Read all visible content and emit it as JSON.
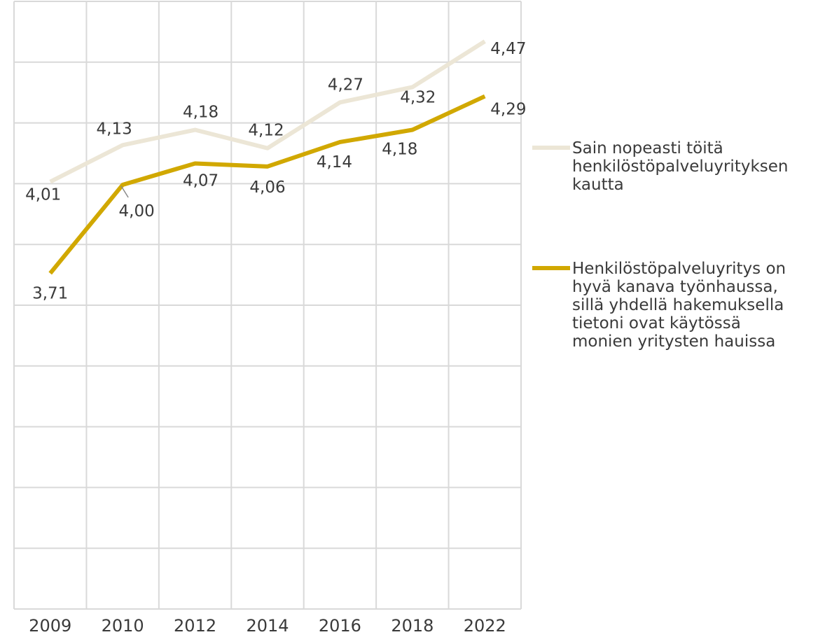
{
  "chart_data": {
    "type": "line",
    "categories": [
      "2009",
      "2010",
      "2012",
      "2014",
      "2016",
      "2018",
      "2022"
    ],
    "ylim": [
      3.0,
      4.5
    ],
    "grid": true,
    "legend_position": "right",
    "series": [
      {
        "name": "Sain nopeasti töitä henkilöstöpalveluyrityksen kautta",
        "name_lines": [
          "Sain nopeasti töitä",
          "henkilöstöpalveluyrityksen",
          "kautta"
        ],
        "color": "#ece6d6",
        "values": [
          4.01,
          4.13,
          4.18,
          4.12,
          4.27,
          4.32,
          4.47
        ],
        "labels": [
          "4,01",
          "4,13",
          "4,18",
          "4,12",
          "4,27",
          "4,32",
          "4,47"
        ]
      },
      {
        "name": "Henkilöstöpalveluyritys on hyvä kanava työnhaussa, sillä yhdellä hakemuksella tietoni ovat käytössä monien yritysten hauissa",
        "name_lines": [
          "Henkilöstöpalveluyritys on",
          "hyvä kanava työnhaussa,",
          "sillä yhdellä hakemuksella",
          "tietoni ovat käytössä",
          "monien yritysten hauissa"
        ],
        "color": "#d1a800",
        "values": [
          3.71,
          4.0,
          4.07,
          4.06,
          4.14,
          4.18,
          4.29
        ],
        "labels": [
          "3,71",
          "4,00",
          "4,07",
          "4,06",
          "4,14",
          "4,18",
          "4,29"
        ]
      }
    ]
  }
}
